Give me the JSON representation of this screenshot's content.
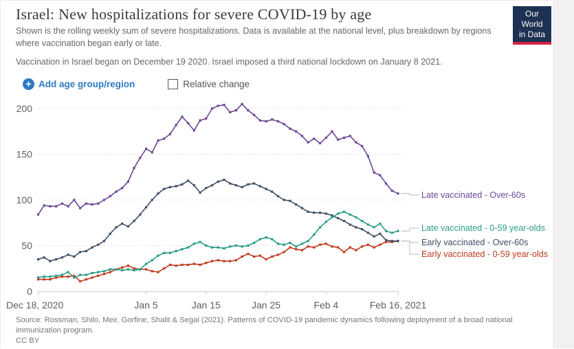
{
  "header": {
    "title": "Israel: New hospitalizations for severe COVID-19 by age",
    "subtitle": "Shown is the rolling weekly sum of severe hospitalizations. Data is available at the national level, plus breakdown by regions where vaccination began early or late.",
    "note": "Vaccination in Israel began on December 19 2020. Israel imposed a third national lockdown on January 8 2021.",
    "logo": {
      "line1": "Our World",
      "line2": "in Data"
    }
  },
  "controls": {
    "add_label": "Add age group/region",
    "relative_change_label": "Relative change",
    "relative_change_checked": false
  },
  "footer": {
    "source": "Source: Rossman, Shilo, Meir, Gorfine, Shalit & Segal (2021). Patterns of COVID-19 pandemic dynamics following deployment of a broad national immunization program.",
    "license": "CC BY"
  },
  "colors": {
    "accent_blue": "#2e7ac1",
    "logo_navy": "#1d3153",
    "logo_red": "#d92040",
    "grid": "#dcdcdc",
    "axis": "#cccccc",
    "tick_text": "#5f5f5f",
    "connector": "#bbbbbb"
  },
  "chart_data": {
    "type": "line",
    "x_start": "Dec 18, 2020",
    "x_end": "Feb 16, 2021",
    "x_days": 61,
    "ylim": [
      0,
      210
    ],
    "y_ticks": [
      0,
      50,
      100,
      150,
      200
    ],
    "grid": true,
    "legend_position": "right",
    "x_ticks": [
      {
        "label": "Dec 18, 2020",
        "day": 0
      },
      {
        "label": "Jan 5",
        "day": 18
      },
      {
        "label": "Jan 15",
        "day": 28
      },
      {
        "label": "Jan 25",
        "day": 38
      },
      {
        "label": "Feb 4",
        "day": 48
      },
      {
        "label": "Feb 16, 2021",
        "day": 60
      }
    ],
    "series": [
      {
        "label": "Late vaccinated - Over-60s",
        "color": "#6d4596",
        "values": [
          84,
          94,
          93,
          93,
          96,
          93,
          100,
          91,
          96,
          95,
          96,
          100,
          104,
          109,
          113,
          120,
          135,
          146,
          156,
          152,
          165,
          167,
          172,
          182,
          191,
          184,
          176,
          187,
          189,
          200,
          203,
          204,
          196,
          198,
          205,
          198,
          193,
          187,
          186,
          188,
          186,
          183,
          178,
          175,
          170,
          163,
          167,
          162,
          168,
          175,
          166,
          168,
          170,
          163,
          159,
          148,
          130,
          127,
          118,
          110,
          107
        ]
      },
      {
        "label": "Late vaccinated - 0-59 year-olds",
        "color": "#2a9c85",
        "values": [
          15,
          16,
          16,
          17,
          18,
          21,
          15,
          18,
          18,
          20,
          21,
          22,
          24,
          24,
          23,
          24,
          23,
          24,
          30,
          34,
          39,
          42,
          42,
          44,
          46,
          48,
          52,
          54,
          50,
          48,
          48,
          47,
          49,
          50,
          49,
          50,
          53,
          57,
          59,
          57,
          52,
          51,
          53,
          49,
          52,
          55,
          62,
          70,
          76,
          81,
          85,
          87,
          84,
          81,
          77,
          73,
          70,
          74,
          66,
          64,
          66
        ]
      },
      {
        "label": "Early vaccinated - Over-60s",
        "color": "#3f4f66",
        "values": [
          35,
          37,
          33,
          35,
          37,
          40,
          38,
          43,
          44,
          48,
          51,
          55,
          63,
          70,
          74,
          71,
          77,
          84,
          92,
          100,
          107,
          112,
          114,
          115,
          117,
          121,
          116,
          108,
          113,
          116,
          120,
          122,
          118,
          116,
          114,
          117,
          118,
          115,
          112,
          109,
          104,
          100,
          99,
          95,
          91,
          87,
          86,
          86,
          85,
          83,
          80,
          77,
          73,
          70,
          68,
          64,
          60,
          63,
          56,
          55,
          55
        ]
      },
      {
        "label": "Early vaccinated - 0-59 year-olds",
        "color": "#bf3a1e",
        "values": [
          13,
          13,
          13,
          15,
          16,
          16,
          17,
          11,
          13,
          15,
          17,
          19,
          21,
          24,
          26,
          28,
          25,
          24,
          24,
          22,
          21,
          25,
          29,
          28,
          29,
          29,
          30,
          29,
          31,
          33,
          34,
          33,
          33,
          34,
          38,
          41,
          38,
          39,
          35,
          38,
          40,
          43,
          48,
          46,
          45,
          49,
          48,
          51,
          52,
          49,
          48,
          43,
          48,
          45,
          49,
          51,
          48,
          51,
          54,
          54,
          55
        ]
      }
    ]
  }
}
